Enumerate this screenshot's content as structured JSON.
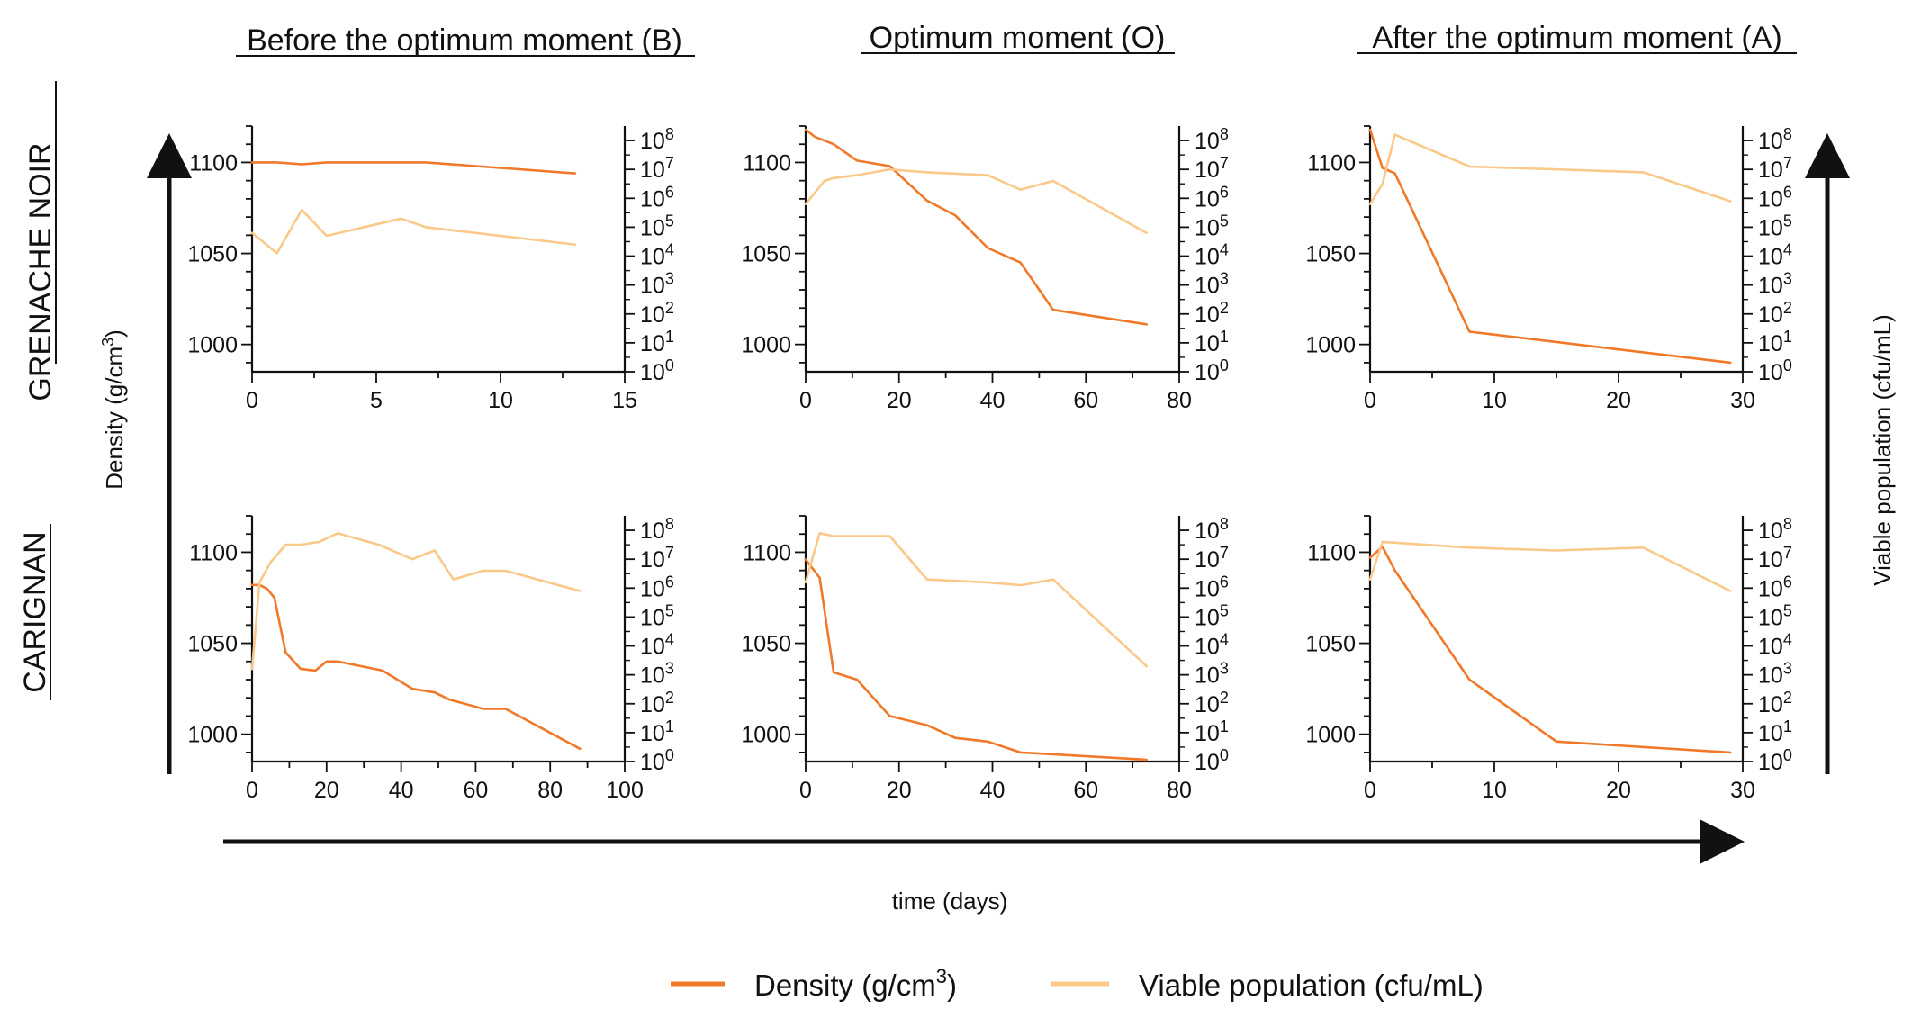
{
  "colors": {
    "density": "#F07828",
    "viable": "#FAC98A",
    "axis": "#111111"
  },
  "column_titles": [
    "Before the optimum moment (B)",
    "Optimum moment (O)",
    "After the optimum moment (A)"
  ],
  "row_titles": [
    "GRENACHE NOIR",
    "CARIGNAN"
  ],
  "left_axis_title": {
    "prefix": "Density (g/cm",
    "sup": "3",
    "suffix": ")"
  },
  "right_axis_title": "Viable population (cfu/mL)",
  "x_axis_title": "time (days)",
  "legend": {
    "density": {
      "prefix": "Density (g/cm",
      "sup": "3",
      "suffix": ")"
    },
    "viable": "Viable population (cfu/mL)"
  },
  "chart_data": [
    {
      "type": "line",
      "grape": "GRENACHE NOIR",
      "moment": "Before the optimum moment (B)",
      "xlabel": "time (days)",
      "ylabel": "Density (g/cm3)",
      "y2label": "Viable population (cfu/mL)",
      "xlim": [
        0,
        15
      ],
      "xticks": [
        0,
        5,
        10,
        15
      ],
      "ylim": [
        985,
        1120
      ],
      "yticks": [
        1000,
        1050,
        1100
      ],
      "y2lim_log10": [
        0,
        8.5
      ],
      "y2ticks": [
        "10^0",
        "10^1",
        "10^2",
        "10^3",
        "10^4",
        "10^5",
        "10^6",
        "10^7",
        "10^8"
      ],
      "series": [
        {
          "name": "Density (g/cm3)",
          "axis": "left",
          "x": [
            0,
            1,
            2,
            3,
            5,
            7,
            9,
            11,
            13
          ],
          "y": [
            1100,
            1100,
            1099,
            1100,
            1100,
            1100,
            1098,
            1096,
            1094
          ]
        },
        {
          "name": "Viable population (cfu/mL)",
          "axis": "right",
          "log10": true,
          "x": [
            0,
            1,
            2,
            3,
            6,
            7,
            9,
            13
          ],
          "y": [
            4.8,
            4.1,
            5.6,
            4.7,
            5.3,
            5.0,
            4.8,
            4.4
          ]
        }
      ]
    },
    {
      "type": "line",
      "grape": "GRENACHE NOIR",
      "moment": "Optimum moment (O)",
      "xlabel": "time (days)",
      "ylabel": "Density (g/cm3)",
      "y2label": "Viable population (cfu/mL)",
      "xlim": [
        0,
        80
      ],
      "xticks": [
        0,
        20,
        40,
        60,
        80
      ],
      "ylim": [
        985,
        1120
      ],
      "yticks": [
        1000,
        1050,
        1100
      ],
      "y2lim_log10": [
        0,
        8.5
      ],
      "y2ticks": [
        "10^0",
        "10^1",
        "10^2",
        "10^3",
        "10^4",
        "10^5",
        "10^6",
        "10^7",
        "10^8"
      ],
      "series": [
        {
          "name": "Density (g/cm3)",
          "axis": "left",
          "x": [
            0,
            2,
            6,
            11,
            18,
            26,
            32,
            39,
            46,
            53,
            73
          ],
          "y": [
            1118,
            1114,
            1110,
            1101,
            1098,
            1079,
            1071,
            1053,
            1045,
            1019,
            1011
          ]
        },
        {
          "name": "Viable population (cfu/mL)",
          "axis": "right",
          "log10": true,
          "x": [
            0,
            4,
            6,
            11,
            18,
            26,
            39,
            46,
            53,
            73
          ],
          "y": [
            5.8,
            6.6,
            6.7,
            6.8,
            7.0,
            6.9,
            6.8,
            6.3,
            6.6,
            4.8
          ]
        }
      ]
    },
    {
      "type": "line",
      "grape": "GRENACHE NOIR",
      "moment": "After the optimum moment (A)",
      "xlabel": "time (days)",
      "ylabel": "Density (g/cm3)",
      "y2label": "Viable population (cfu/mL)",
      "xlim": [
        0,
        30
      ],
      "xticks": [
        0,
        10,
        20,
        30
      ],
      "ylim": [
        985,
        1120
      ],
      "yticks": [
        1000,
        1050,
        1100
      ],
      "y2lim_log10": [
        0,
        8.5
      ],
      "y2ticks": [
        "10^0",
        "10^1",
        "10^2",
        "10^3",
        "10^4",
        "10^5",
        "10^6",
        "10^7",
        "10^8"
      ],
      "series": [
        {
          "name": "Density (g/cm3)",
          "axis": "left",
          "x": [
            0,
            1,
            2,
            8,
            29
          ],
          "y": [
            1118,
            1097,
            1094,
            1007,
            990
          ]
        },
        {
          "name": "Viable population (cfu/mL)",
          "axis": "right",
          "log10": true,
          "x": [
            0,
            1,
            2,
            8,
            22,
            29
          ],
          "y": [
            5.8,
            6.5,
            8.2,
            7.1,
            6.9,
            5.9
          ]
        }
      ]
    },
    {
      "type": "line",
      "grape": "CARIGNAN",
      "moment": "Before the optimum moment (B)",
      "xlabel": "time (days)",
      "ylabel": "Density (g/cm3)",
      "y2label": "Viable population (cfu/mL)",
      "xlim": [
        0,
        100
      ],
      "xticks": [
        0,
        20,
        40,
        60,
        80,
        100
      ],
      "ylim": [
        985,
        1120
      ],
      "yticks": [
        1000,
        1050,
        1100
      ],
      "y2lim_log10": [
        0,
        8.5
      ],
      "y2ticks": [
        "10^0",
        "10^1",
        "10^2",
        "10^3",
        "10^4",
        "10^5",
        "10^6",
        "10^7",
        "10^8"
      ],
      "series": [
        {
          "name": "Density (g/cm3)",
          "axis": "left",
          "x": [
            0,
            2,
            4,
            6,
            9,
            13,
            17,
            20,
            23,
            35,
            43,
            49,
            53,
            62,
            68,
            88
          ],
          "y": [
            1082,
            1082,
            1080,
            1075,
            1045,
            1036,
            1035,
            1040,
            1040,
            1035,
            1025,
            1023,
            1019,
            1014,
            1014,
            992
          ]
        },
        {
          "name": "Viable population (cfu/mL)",
          "axis": "right",
          "log10": true,
          "x": [
            0,
            2,
            5,
            9,
            13,
            18,
            23,
            34,
            43,
            49,
            54,
            62,
            68,
            88
          ],
          "y": [
            3.2,
            6.2,
            6.9,
            7.5,
            7.5,
            7.6,
            7.9,
            7.5,
            7.0,
            7.3,
            6.3,
            6.6,
            6.6,
            5.9
          ]
        }
      ]
    },
    {
      "type": "line",
      "grape": "CARIGNAN",
      "moment": "Optimum moment (O)",
      "xlabel": "time (days)",
      "ylabel": "Density (g/cm3)",
      "y2label": "Viable population (cfu/mL)",
      "xlim": [
        0,
        80
      ],
      "xticks": [
        0,
        20,
        40,
        60,
        80
      ],
      "ylim": [
        985,
        1120
      ],
      "yticks": [
        1000,
        1050,
        1100
      ],
      "y2lim_log10": [
        0,
        8.5
      ],
      "y2ticks": [
        "10^0",
        "10^1",
        "10^2",
        "10^3",
        "10^4",
        "10^5",
        "10^6",
        "10^7",
        "10^8"
      ],
      "series": [
        {
          "name": "Density (g/cm3)",
          "axis": "left",
          "x": [
            0,
            3,
            6,
            11,
            18,
            26,
            32,
            39,
            46,
            53,
            73
          ],
          "y": [
            1096,
            1086,
            1034,
            1030,
            1010,
            1005,
            998,
            996,
            990,
            989,
            986
          ]
        },
        {
          "name": "Viable population (cfu/mL)",
          "axis": "right",
          "log10": true,
          "x": [
            0,
            3,
            6,
            11,
            18,
            26,
            39,
            46,
            53,
            73
          ],
          "y": [
            6.2,
            7.9,
            7.8,
            7.8,
            7.8,
            6.3,
            6.2,
            6.1,
            6.3,
            3.3
          ]
        }
      ]
    },
    {
      "type": "line",
      "grape": "CARIGNAN",
      "moment": "After the optimum moment (A)",
      "xlabel": "time (days)",
      "ylabel": "Density (g/cm3)",
      "y2label": "Viable population (cfu/mL)",
      "xlim": [
        0,
        30
      ],
      "xticks": [
        0,
        10,
        20,
        30
      ],
      "ylim": [
        985,
        1120
      ],
      "yticks": [
        1000,
        1050,
        1100
      ],
      "y2lim_log10": [
        0,
        8.5
      ],
      "y2ticks": [
        "10^0",
        "10^1",
        "10^2",
        "10^3",
        "10^4",
        "10^5",
        "10^6",
        "10^7",
        "10^8"
      ],
      "series": [
        {
          "name": "Density (g/cm3)",
          "axis": "left",
          "x": [
            0,
            1,
            2,
            8,
            15,
            29
          ],
          "y": [
            1097,
            1103,
            1090,
            1030,
            996,
            990
          ]
        },
        {
          "name": "Viable population (cfu/mL)",
          "axis": "right",
          "log10": true,
          "x": [
            0,
            1,
            8,
            15,
            22,
            29
          ],
          "y": [
            6.3,
            7.6,
            7.4,
            7.3,
            7.4,
            5.9
          ]
        }
      ]
    }
  ]
}
